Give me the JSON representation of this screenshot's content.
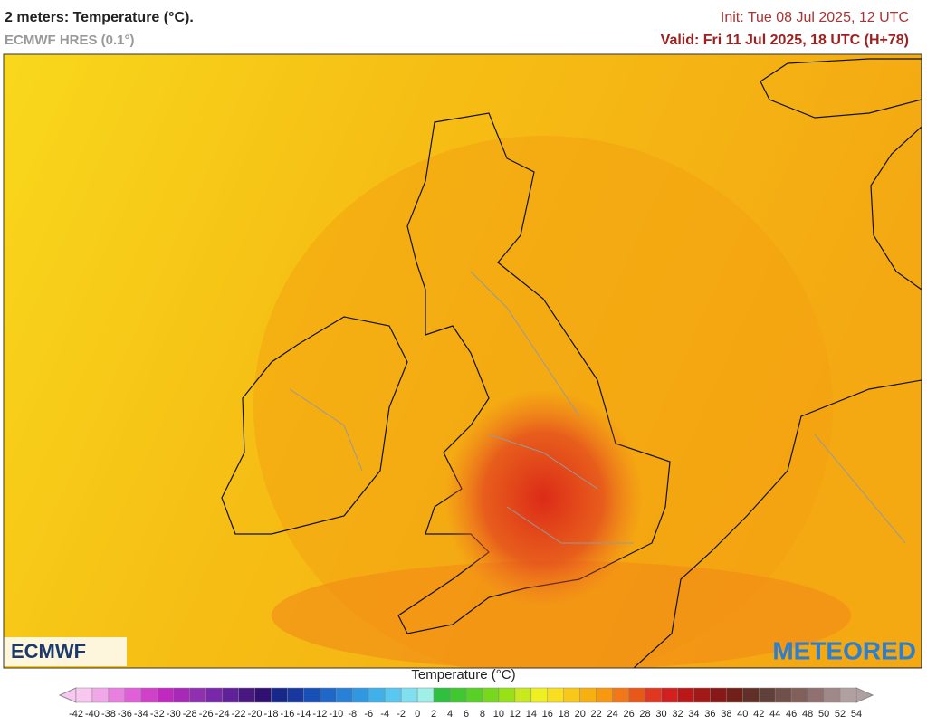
{
  "header": {
    "title": "2 meters: Temperature (°C).",
    "model": "ECMWF HRES (0.1°)",
    "init": "Init: Tue 08 Jul 2025, 12 UTC",
    "valid": "Valid: Fri 11 Jul 2025, 18 UTC (H+78)"
  },
  "map": {
    "logo_left": "ECMWF",
    "logo_right": "METEORED"
  },
  "colorbar": {
    "title": "Temperature (°C)",
    "ticks": [
      -42,
      -40,
      -38,
      -36,
      -34,
      -32,
      -30,
      -28,
      -26,
      -24,
      -22,
      -20,
      -18,
      -16,
      -14,
      -12,
      -10,
      -8,
      -6,
      -4,
      -2,
      0,
      2,
      4,
      6,
      8,
      10,
      12,
      14,
      16,
      18,
      20,
      22,
      24,
      26,
      28,
      30,
      32,
      34,
      36,
      38,
      40,
      42,
      44,
      46,
      48,
      50,
      52,
      54
    ],
    "colors": [
      "#f9c8f0",
      "#f0a8e8",
      "#e880e0",
      "#e060d8",
      "#d040c8",
      "#c028c0",
      "#a828b8",
      "#9030b0",
      "#7828a8",
      "#602098",
      "#481880",
      "#301070",
      "#182888",
      "#1838a0",
      "#1850b8",
      "#2068c8",
      "#2880d8",
      "#3098e0",
      "#40b0e8",
      "#58c8f0",
      "#80e0f0",
      "#a0f0e8",
      "#30c040",
      "#40c830",
      "#58d028",
      "#78d820",
      "#98e018",
      "#c8e820",
      "#f0f020",
      "#f8e020",
      "#f8c818",
      "#f8b010",
      "#f89810",
      "#f07818",
      "#e85818",
      "#e03820",
      "#d02020",
      "#b81818",
      "#a01818",
      "#881818",
      "#702018",
      "#603028",
      "#604038",
      "#705048",
      "#806058",
      "#907070",
      "#a08888",
      "#b0a0a0"
    ]
  }
}
